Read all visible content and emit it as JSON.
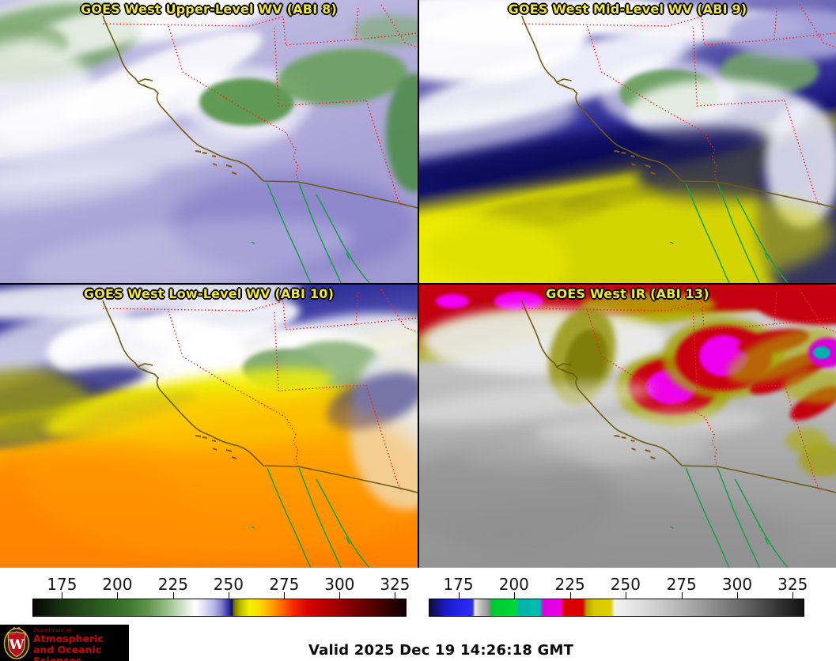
{
  "panels": [
    {
      "title": "GOES West Upper-Level WV (ABI 8)"
    },
    {
      "title": "GOES West Mid-Level WV (ABI 9)"
    },
    {
      "title": "GOES West Low-Level WV (ABI 10)"
    },
    {
      "title": "GOES West IR (ABI 13)"
    }
  ],
  "colorbars": [
    {
      "id": "wv-temperature-scale",
      "ticks": [
        "175",
        "200",
        "225",
        "250",
        "275",
        "300",
        "325"
      ],
      "gradient_stops": [
        "#000000",
        "#2f6323",
        "#96c187",
        "#ffffff",
        "#8181cd",
        "#1b1b86",
        "#f2f200",
        "#ffa000",
        "#f22800",
        "#ab0000",
        "#4d0000",
        "#140000"
      ]
    },
    {
      "id": "ir-temperature-scale",
      "ticks": [
        "175",
        "200",
        "225",
        "250",
        "275",
        "300",
        "325"
      ],
      "gradient_stops": [
        "#0d0d3a",
        "#2424e8",
        "#c2c2c2",
        "#00d837",
        "#00b4a8",
        "#ea00ea",
        "#d80000",
        "#d8c800",
        "#f2f2f2",
        "#a8a8a8",
        "#5c5c5c",
        "#111111"
      ]
    }
  ],
  "branding": {
    "dept_small": "Department of",
    "dept_line1": "Atmospheric",
    "dept_line2": "and Oceanic Sciences",
    "monogram": "W",
    "brand_red": "#c5050c"
  },
  "footer": {
    "valid_text": "Valid 2025 Dec 19 14:26:18 GMT"
  },
  "accents": {
    "title_yellow": "#f2e838",
    "state_border_red": "#ff1f1f",
    "coastline_olive": "#6d5c12",
    "baja_green": "#12a245"
  }
}
